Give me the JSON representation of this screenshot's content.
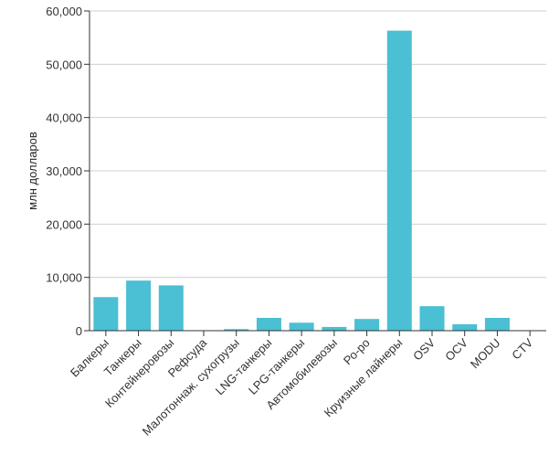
{
  "chart_data": {
    "type": "bar",
    "title": "",
    "xlabel": "",
    "ylabel": "млн долларов",
    "ylim": [
      0,
      60000
    ],
    "yticks": [
      "0",
      "10,000",
      "20,000",
      "30,000",
      "40,000",
      "50,000",
      "60,000"
    ],
    "ytick_values": [
      0,
      10000,
      20000,
      30000,
      40000,
      50000,
      60000
    ],
    "grid": true,
    "bar_color": "#4bbfd3",
    "categories": [
      "Балкеры",
      "Танкеры",
      "Контейнеровозы",
      "Рефсуда",
      "Малотоннаж. сухогрузы",
      "LNG-танкеры",
      "LPG-танкеры",
      "Автомобилевозы",
      "Ро-ро",
      "Круизные лайнеры",
      "OSV",
      "OCV",
      "MODU",
      "CTV"
    ],
    "values": [
      6300,
      9400,
      8500,
      0,
      300,
      2400,
      1500,
      700,
      2200,
      56300,
      4600,
      1200,
      2400,
      0
    ]
  }
}
